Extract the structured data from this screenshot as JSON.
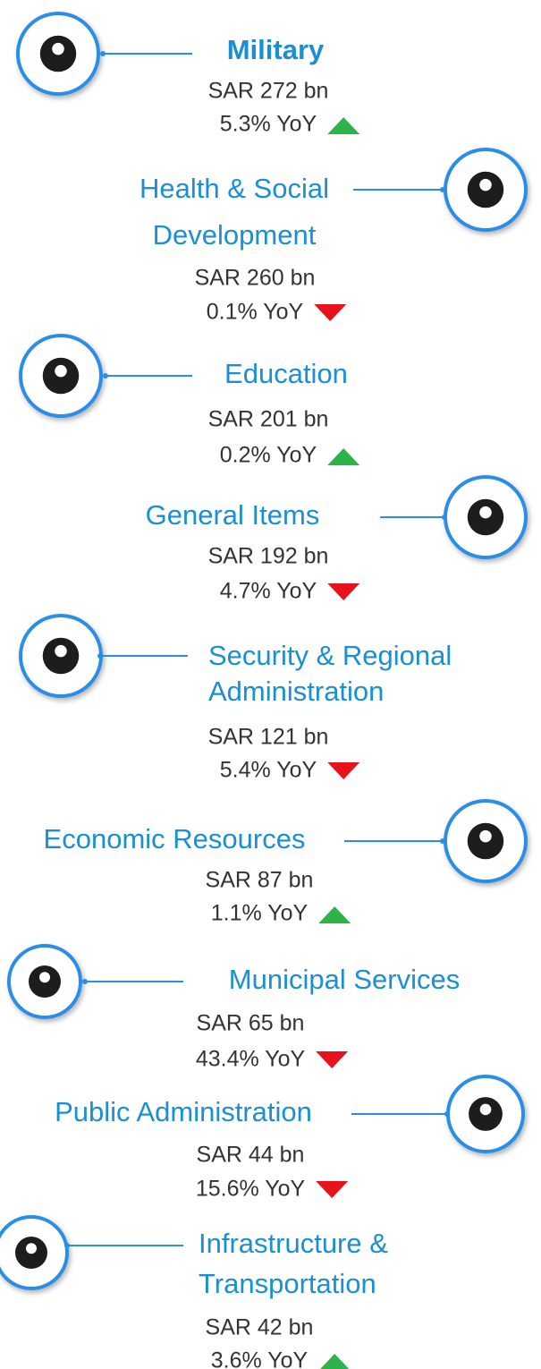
{
  "items": [
    {
      "title_lines": [
        "Military"
      ],
      "amount": "SAR 272 bn",
      "yoy": "5.3% YoY",
      "trend": "up"
    },
    {
      "title_lines": [
        "Health & Social",
        "Development"
      ],
      "amount": "SAR 260 bn",
      "yoy": "0.1% YoY",
      "trend": "down"
    },
    {
      "title_lines": [
        "Education"
      ],
      "amount": "SAR 201 bn",
      "yoy": "0.2% YoY",
      "trend": "up"
    },
    {
      "title_lines": [
        "General Items"
      ],
      "amount": "SAR 192 bn",
      "yoy": "4.7% YoY",
      "trend": "down"
    },
    {
      "title_lines": [
        "Security & Regional",
        "Administration"
      ],
      "amount": "SAR 121 bn",
      "yoy": "5.4% YoY",
      "trend": "down"
    },
    {
      "title_lines": [
        "Economic Resources"
      ],
      "amount": "SAR 87 bn",
      "yoy": "1.1% YoY",
      "trend": "up"
    },
    {
      "title_lines": [
        "Municipal Services"
      ],
      "amount": "SAR 65 bn",
      "yoy": "43.4% YoY",
      "trend": "down"
    },
    {
      "title_lines": [
        "Public Administration"
      ],
      "amount": "SAR 44 bn",
      "yoy": "15.6% YoY",
      "trend": "down"
    },
    {
      "title_lines": [
        "Infrastructure &",
        "Transportation"
      ],
      "amount": "SAR 42 bn",
      "yoy": "3.6% YoY",
      "trend": "up"
    }
  ]
}
